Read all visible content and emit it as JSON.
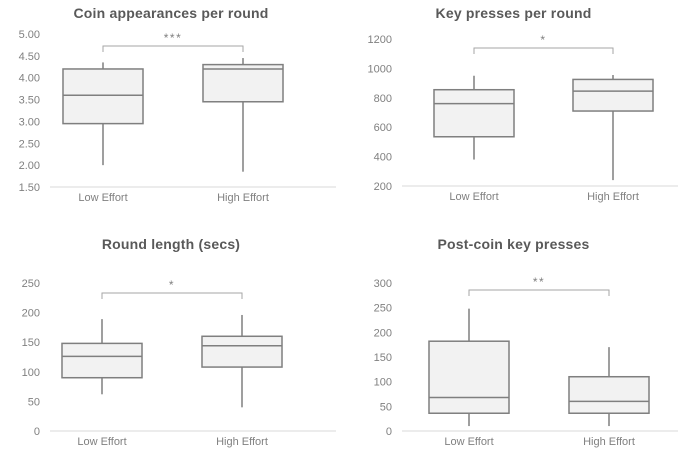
{
  "colors": {
    "background": "#ffffff",
    "title": "#595959",
    "labels": "#808080",
    "box_fill": "#f2f2f2",
    "box_stroke": "#7f7f7f",
    "axis_line": "#d9d9d9",
    "bracket": "#a6a6a6"
  },
  "chart_data": [
    {
      "type": "boxplot",
      "title": "Coin appearances per round",
      "categories": [
        "Low Effort",
        "High Effort"
      ],
      "y_ticks": [
        "5.00",
        "4.50",
        "4.00",
        "3.50",
        "3.00",
        "2.50",
        "2.00",
        "1.50"
      ],
      "ylim": [
        1.5,
        5.0
      ],
      "grid": false,
      "legend": "none",
      "significance": "***",
      "series": [
        {
          "name": "Low Effort",
          "min": 2.0,
          "q1": 2.95,
          "median": 3.6,
          "q3": 4.2,
          "max": 4.35
        },
        {
          "name": "High Effort",
          "min": 1.85,
          "q1": 3.45,
          "median": 4.2,
          "q3": 4.3,
          "max": 4.45
        }
      ]
    },
    {
      "type": "boxplot",
      "title": "Key presses per round",
      "categories": [
        "Low Effort",
        "High Effort"
      ],
      "y_ticks": [
        "1200",
        "1000",
        "800",
        "600",
        "400",
        "200"
      ],
      "ylim": [
        200,
        1200
      ],
      "grid": false,
      "legend": "none",
      "significance": "*",
      "series": [
        {
          "name": "Low Effort",
          "min": 380,
          "q1": 535,
          "median": 760,
          "q3": 855,
          "max": 950
        },
        {
          "name": "High Effort",
          "min": 240,
          "q1": 710,
          "median": 845,
          "q3": 925,
          "max": 955
        }
      ]
    },
    {
      "type": "boxplot",
      "title": "Round length (secs)",
      "categories": [
        "Low Effort",
        "High Effort"
      ],
      "y_ticks": [
        "250",
        "200",
        "150",
        "100",
        "50",
        "0"
      ],
      "ylim": [
        0,
        250
      ],
      "grid": false,
      "legend": "none",
      "significance": "*",
      "series": [
        {
          "name": "Low Effort",
          "min": 62,
          "q1": 90,
          "median": 126,
          "q3": 148,
          "max": 189
        },
        {
          "name": "High Effort",
          "min": 40,
          "q1": 108,
          "median": 144,
          "q3": 160,
          "max": 196
        }
      ]
    },
    {
      "type": "boxplot",
      "title": "Post-coin key presses",
      "categories": [
        "Low Effort",
        "High Effort"
      ],
      "y_ticks": [
        "300",
        "250",
        "200",
        "150",
        "100",
        "50",
        "0"
      ],
      "ylim": [
        0,
        300
      ],
      "grid": false,
      "legend": "none",
      "significance": "**",
      "series": [
        {
          "name": "Low Effort",
          "min": 10,
          "q1": 36,
          "median": 68,
          "q3": 182,
          "max": 248
        },
        {
          "name": "High Effort",
          "min": 10,
          "q1": 36,
          "median": 60,
          "q3": 110,
          "max": 170
        }
      ]
    }
  ]
}
